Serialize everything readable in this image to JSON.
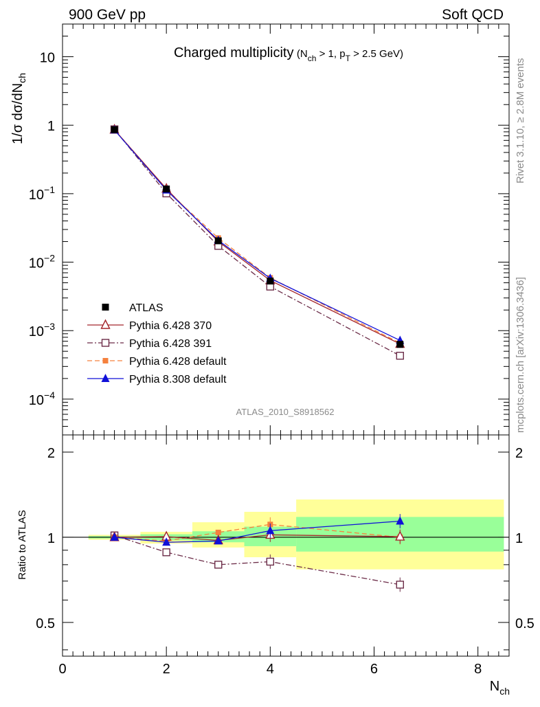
{
  "header": {
    "left": "900 GeV pp",
    "right": "Soft QCD"
  },
  "chart_data": {
    "type": "line",
    "title_main": "Charged multiplicity",
    "title_sub": "(N_ch > 1, p_T > 2.5 GeV)",
    "ylabel_top": "1/σ dσ/dN_ch",
    "ylabel_bottom": "Ratio to ATLAS",
    "xlabel": "N_ch",
    "watermark": "ATLAS_2010_S8918562",
    "side_note_1": "Rivet 3.1.10, ≥ 2.8M events",
    "side_note_2": "mcplots.cern.ch [arXiv:1306.3436]",
    "xlim": [
      0,
      8.6
    ],
    "ylim_top": [
      3e-05,
      30
    ],
    "ylim_bottom": [
      0.38,
      2.3
    ],
    "y_scale_top": "log",
    "legend_position": "bottom-left",
    "x_ticks": [
      0,
      2,
      4,
      6,
      8
    ],
    "ratio_ticks": [
      0.5,
      1,
      2
    ],
    "ratio_tick_labels": [
      "0.5",
      "1",
      "2"
    ],
    "x": [
      1,
      2,
      3,
      4,
      6.5
    ],
    "bins": [
      [
        0.5,
        1.5
      ],
      [
        1.5,
        2.5
      ],
      [
        2.5,
        3.5
      ],
      [
        3.5,
        4.5
      ],
      [
        4.5,
        8.5
      ]
    ],
    "data_band_inner": [
      [
        0.99,
        1.01
      ],
      [
        0.975,
        1.025
      ],
      [
        0.96,
        1.05
      ],
      [
        0.93,
        1.09
      ],
      [
        0.89,
        1.18
      ]
    ],
    "data_band_outer": [
      [
        0.98,
        1.02
      ],
      [
        0.95,
        1.045
      ],
      [
        0.92,
        1.13
      ],
      [
        0.85,
        1.23
      ],
      [
        0.77,
        1.36
      ]
    ],
    "series": [
      {
        "name": "ATLAS",
        "color": "#000000",
        "marker": "filled-square",
        "line": "none",
        "values": [
          0.86,
          0.117,
          0.0205,
          0.0053,
          0.00063
        ]
      },
      {
        "name": "Pythia 6.428 370",
        "color": "#a3242a",
        "marker": "open-triangle",
        "line": "solid",
        "values": [
          0.86,
          0.118,
          0.02,
          0.0054,
          0.00064
        ],
        "ratio": [
          1.0,
          1.005,
          0.975,
          1.02,
          1.005
        ]
      },
      {
        "name": "Pythia 6.428 391",
        "color": "#6b2b47",
        "marker": "open-square",
        "line": "dash-dot",
        "values": [
          0.87,
          0.101,
          0.0173,
          0.0044,
          0.00043
        ],
        "ratio": [
          1.015,
          0.885,
          0.8,
          0.82,
          0.68
        ]
      },
      {
        "name": "Pythia 6.428 default",
        "color": "#f5813e",
        "marker": "filled-small-square",
        "line": "dashed",
        "values": [
          0.86,
          0.113,
          0.0225,
          0.0059,
          0.00066
        ],
        "ratio": [
          1.0,
          0.97,
          1.04,
          1.11,
          1.0
        ]
      },
      {
        "name": "Pythia 8.308 default",
        "color": "#1010d8",
        "marker": "filled-triangle",
        "line": "solid",
        "values": [
          0.85,
          0.113,
          0.0208,
          0.0058,
          0.00072
        ],
        "ratio": [
          1.0,
          0.96,
          0.97,
          1.055,
          1.14
        ]
      }
    ]
  }
}
